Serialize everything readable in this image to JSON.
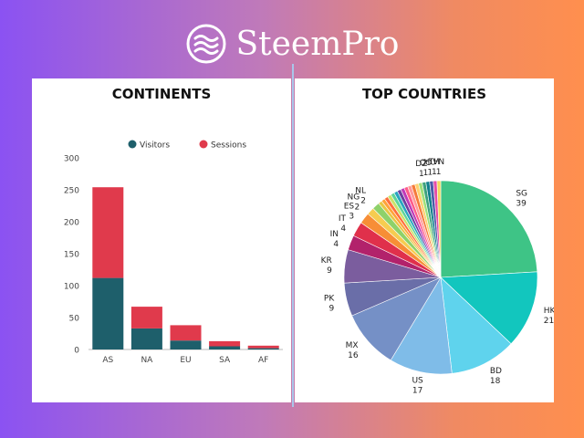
{
  "brand": {
    "name": "SteemPro",
    "icon": "waves-icon"
  },
  "chart_data": [
    {
      "type": "bar",
      "stacked": true,
      "title": "CONTINENTS",
      "legend_position": "top",
      "categories": [
        "AS",
        "NA",
        "EU",
        "SA",
        "AF"
      ],
      "series": [
        {
          "name": "Visitors",
          "color": "#1e5f6b",
          "values": [
            112,
            33,
            14,
            5,
            2
          ]
        },
        {
          "name": "Sessions",
          "color": "#e03a4c",
          "values": [
            142,
            34,
            24,
            8,
            4
          ]
        }
      ],
      "yticks": [
        "0",
        "50",
        "100",
        "150",
        "200",
        "250",
        "300"
      ],
      "ylim": [
        0,
        300
      ],
      "grid": false
    },
    {
      "type": "pie",
      "title": "TOP COUNTRIES",
      "labeled_slices": [
        {
          "label": "SG",
          "value": 39,
          "color": "#3ec486"
        },
        {
          "label": "HK",
          "value": 21,
          "color": "#12c6be"
        },
        {
          "label": "BD",
          "value": 18,
          "color": "#5fd3ed"
        },
        {
          "label": "US",
          "value": 17,
          "color": "#7fbce8"
        },
        {
          "label": "MX",
          "value": 16,
          "color": "#7590c6"
        },
        {
          "label": "PK",
          "value": 9,
          "color": "#6a6ea8"
        },
        {
          "label": "KR",
          "value": 9,
          "color": "#7b5d9e"
        },
        {
          "label": "IN",
          "value": 4,
          "color": "#b2226b"
        },
        {
          "label": "IT",
          "value": 4,
          "color": "#e0304b"
        },
        {
          "label": "ES",
          "value": 3,
          "color": "#f78e36"
        },
        {
          "label": "NG",
          "value": 2,
          "color": "#f6cc50"
        },
        {
          "label": "NL",
          "value": 2,
          "color": "#8ed16a"
        },
        {
          "label": "DZ",
          "value": 1,
          "color": "#3ea27e"
        },
        {
          "label": "CO",
          "value": 1,
          "color": "#0f7f8b"
        },
        {
          "label": "HU",
          "value": 1,
          "color": "#4a5aa8"
        },
        {
          "label": "TH",
          "value": 1,
          "color": "#e64da8"
        },
        {
          "label": "VN",
          "value": 1,
          "color": "#f3d75a"
        }
      ],
      "unlabeled_small_slices": [
        {
          "value": 1,
          "color": "#e8c644"
        },
        {
          "value": 1,
          "color": "#ffa33a"
        },
        {
          "value": 1,
          "color": "#ff6f3c"
        },
        {
          "value": 1,
          "color": "#c9e36a"
        },
        {
          "value": 1,
          "color": "#5ed59a"
        },
        {
          "value": 1,
          "color": "#2aa5c0"
        },
        {
          "value": 1,
          "color": "#6c3fa0"
        },
        {
          "value": 1,
          "color": "#c03ab8"
        },
        {
          "value": 1,
          "color": "#ff5c8a"
        },
        {
          "value": 1,
          "color": "#ff9a9a"
        },
        {
          "value": 1,
          "color": "#f57a3a"
        },
        {
          "value": 1,
          "color": "#ffd170"
        },
        {
          "value": 1,
          "color": "#9ee07a"
        }
      ]
    }
  ]
}
